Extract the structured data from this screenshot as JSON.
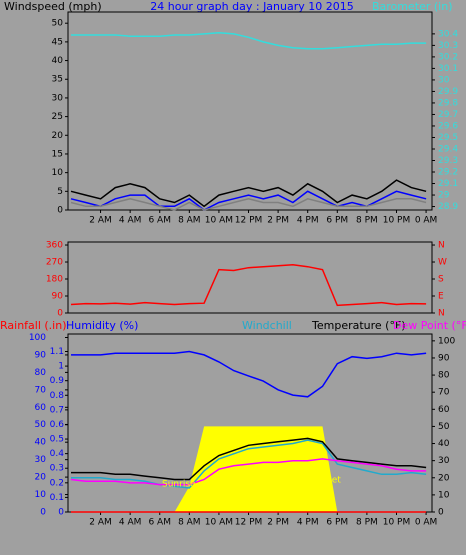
{
  "chart_data": [
    {
      "type": "line",
      "title": "24 hour graph day : January 10 2015",
      "ylabel": "Windspeed (mph)",
      "y2label": "Barometer (in)",
      "x": [
        0,
        1,
        2,
        3,
        4,
        5,
        6,
        7,
        8,
        9,
        10,
        11,
        12,
        13,
        14,
        15,
        16,
        17,
        18,
        19,
        20,
        21,
        22,
        23,
        24
      ],
      "xlim": [
        -0.2,
        24.4
      ],
      "xticks": [
        {
          "value": 2,
          "label": "2 AM"
        },
        {
          "value": 4,
          "label": "4 AM"
        },
        {
          "value": 6,
          "label": "6 AM"
        },
        {
          "value": 8,
          "label": "8 AM"
        },
        {
          "value": 10,
          "label": "10 AM"
        },
        {
          "value": 12,
          "label": "12 PM"
        },
        {
          "value": 14,
          "label": "2 PM"
        },
        {
          "value": 16,
          "label": "4 PM"
        },
        {
          "value": 18,
          "label": "6 PM"
        },
        {
          "value": 20,
          "label": "8 PM"
        },
        {
          "value": 22,
          "label": "10 PM"
        },
        {
          "value": 24,
          "label": "0 AM"
        }
      ],
      "ylim": [
        0,
        53
      ],
      "yticks": [
        0,
        5,
        10,
        15,
        20,
        25,
        30,
        35,
        40,
        45,
        50
      ],
      "y2lim": [
        28.87,
        30.59
      ],
      "y2ticks": [
        28.9,
        29,
        29.1,
        29.2,
        29.3,
        29.4,
        29.5,
        29.6,
        29.7,
        29.8,
        29.9,
        30,
        30.1,
        30.2,
        30.3,
        30.4
      ],
      "series": [
        {
          "color": "#000000",
          "values": [
            5,
            4,
            3,
            6,
            7,
            6,
            3,
            2,
            4,
            1,
            4,
            5,
            6,
            5,
            6,
            4,
            7,
            5,
            2,
            4,
            3,
            5,
            8,
            6,
            5
          ]
        },
        {
          "color": "#0000ff",
          "values": [
            3,
            2,
            1,
            3,
            4,
            4,
            1,
            1,
            3,
            0,
            2,
            3,
            4,
            3,
            4,
            2,
            5,
            3,
            1,
            2,
            1,
            3,
            5,
            4,
            3
          ]
        },
        {
          "color": "#808080",
          "values": [
            2,
            1,
            1,
            2,
            3,
            2,
            1,
            0,
            2,
            0,
            1,
            2,
            3,
            2,
            2,
            1,
            3,
            2,
            1,
            1,
            1,
            2,
            3,
            3,
            2
          ]
        },
        {
          "color": "#33dddd",
          "axis": "y2",
          "values": [
            30.39,
            30.39,
            30.39,
            30.39,
            30.38,
            30.38,
            30.38,
            30.39,
            30.39,
            30.4,
            30.41,
            30.4,
            30.37,
            30.33,
            30.3,
            30.28,
            30.27,
            30.27,
            30.28,
            30.29,
            30.3,
            30.31,
            30.31,
            30.32,
            30.32
          ]
        }
      ]
    },
    {
      "type": "line",
      "x": [
        0,
        1,
        2,
        3,
        4,
        5,
        6,
        7,
        8,
        9,
        10,
        11,
        12,
        13,
        14,
        15,
        16,
        17,
        18,
        19,
        20,
        21,
        22,
        23,
        24
      ],
      "xlim": [
        -0.2,
        24.4
      ],
      "ylim": [
        0,
        376
      ],
      "yticks": [
        0,
        90,
        180,
        270,
        360
      ],
      "y2lim": [
        0,
        376
      ],
      "y2ticks": [
        {
          "value": 0,
          "label": "N"
        },
        {
          "value": 90,
          "label": "E"
        },
        {
          "value": 180,
          "label": "S"
        },
        {
          "value": 270,
          "label": "W"
        },
        {
          "value": 360,
          "label": "N"
        }
      ],
      "series": [
        {
          "color": "#ff0000",
          "values": [
            45,
            50,
            48,
            52,
            47,
            55,
            50,
            45,
            50,
            52,
            230,
            225,
            240,
            245,
            250,
            255,
            245,
            230,
            40,
            45,
            50,
            55,
            45,
            50,
            48
          ]
        }
      ]
    },
    {
      "type": "line",
      "x": [
        0,
        1,
        2,
        3,
        4,
        5,
        6,
        7,
        8,
        9,
        10,
        11,
        12,
        13,
        14,
        15,
        16,
        17,
        18,
        19,
        20,
        21,
        22,
        23,
        24
      ],
      "xlim": [
        -0.2,
        24.4
      ],
      "xticks": [
        {
          "value": 2,
          "label": "2 AM"
        },
        {
          "value": 4,
          "label": "4 AM"
        },
        {
          "value": 6,
          "label": "6 AM"
        },
        {
          "value": 8,
          "label": "8 AM"
        },
        {
          "value": 10,
          "label": "10 AM"
        },
        {
          "value": 12,
          "label": "12 PM"
        },
        {
          "value": 14,
          "label": "2 PM"
        },
        {
          "value": 16,
          "label": "4 PM"
        },
        {
          "value": 18,
          "label": "6 PM"
        },
        {
          "value": 20,
          "label": "8 PM"
        },
        {
          "value": 22,
          "label": "10 PM"
        },
        {
          "value": 24,
          "label": "0 AM"
        }
      ],
      "ylim": [
        0,
        102
      ],
      "yticks": [
        0,
        10,
        20,
        30,
        40,
        50,
        60,
        70,
        80,
        90,
        100
      ],
      "y2lim": [
        0,
        104
      ],
      "y2ticks": [
        0,
        10,
        20,
        30,
        40,
        50,
        60,
        70,
        80,
        90,
        100
      ],
      "y3lim": [
        0,
        1.22
      ],
      "y3ticks": [
        0,
        0.1,
        0.2,
        0.3,
        0.4,
        0.5,
        0.6,
        0.7,
        0.8,
        0.9,
        1,
        1.1
      ],
      "series": [
        {
          "kind": "area",
          "color": "#ffff00",
          "axis": "y2",
          "values": [
            0,
            0,
            0,
            0,
            0,
            0,
            0,
            0,
            15,
            50,
            50,
            50,
            50,
            50,
            50,
            50,
            50,
            50,
            0,
            0,
            0,
            0,
            0,
            0,
            0
          ]
        },
        {
          "name": "Rainfall (.in)",
          "color": "#ff0000",
          "axis": "y3",
          "values": [
            0,
            0,
            0,
            0,
            0,
            0,
            0,
            0,
            0,
            0,
            0,
            0,
            0,
            0,
            0,
            0,
            0,
            0,
            0,
            0,
            0,
            0,
            0,
            0,
            0
          ]
        },
        {
          "name": "Humidity (%)",
          "color": "#0000ff",
          "values": [
            90,
            90,
            90,
            91,
            91,
            91,
            91,
            91,
            92,
            90,
            86,
            81,
            78,
            75,
            70,
            67,
            66,
            72,
            85,
            89,
            88,
            89,
            91,
            90,
            91
          ]
        },
        {
          "name": "Windchill",
          "color": "#22aacc",
          "axis": "y2",
          "values": [
            20,
            20,
            20,
            19,
            19,
            18,
            16,
            15,
            14,
            24,
            31,
            34,
            37,
            38,
            39,
            40,
            42,
            40,
            28,
            26,
            24,
            22,
            22,
            23,
            22
          ]
        },
        {
          "name": "Temperature (°F)",
          "color": "#000000",
          "axis": "y2",
          "values": [
            23,
            23,
            23,
            22,
            22,
            21,
            20,
            19,
            19,
            27,
            33,
            36,
            39,
            40,
            41,
            42,
            43,
            41,
            31,
            30,
            29,
            28,
            27,
            27,
            26
          ]
        },
        {
          "name": "Dew Point (°F)",
          "color": "#ff00ff",
          "axis": "y2",
          "values": [
            19,
            18,
            18,
            18,
            17,
            17,
            16,
            16,
            16,
            19,
            25,
            27,
            28,
            29,
            29,
            30,
            30,
            31,
            30,
            29,
            28,
            27,
            25,
            24,
            24
          ]
        }
      ],
      "annotations": [
        {
          "text": "Sunrise"
        },
        {
          "text": "Set"
        }
      ]
    }
  ]
}
